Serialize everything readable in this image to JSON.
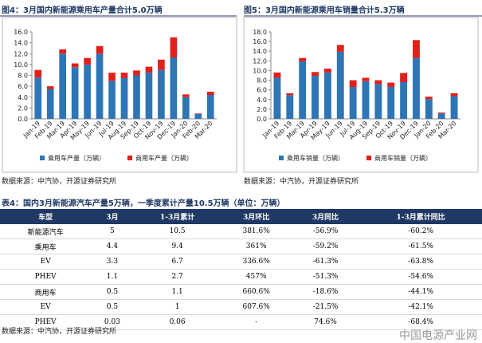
{
  "chart_data": [
    {
      "type": "bar",
      "stacked": true,
      "title": "图4：3月国内新能源乘用车产量合计5.0万辆",
      "categories": [
        "Jan-19",
        "Feb-19",
        "Mar-19",
        "Apr-19",
        "May-19",
        "Jun-19",
        "Jul-19",
        "Aug-19",
        "Sep-19",
        "Oct-19",
        "Nov-19",
        "Dec-19",
        "Jan-20",
        "Feb-20",
        "Mar-20"
      ],
      "series": [
        {
          "name": "乘用车产量（万辆）",
          "color": "#2e75b6",
          "values": [
            7.6,
            5.5,
            12.0,
            9.5,
            10.0,
            12.0,
            7.0,
            7.5,
            8.0,
            8.5,
            9.0,
            11.3,
            4.0,
            0.9,
            4.4
          ]
        },
        {
          "name": "商用车产量（万辆）",
          "color": "#e0201b",
          "values": [
            1.4,
            0.5,
            0.8,
            0.7,
            1.2,
            1.4,
            1.5,
            1.0,
            0.9,
            1.1,
            1.9,
            3.7,
            0.5,
            0.1,
            0.6
          ]
        }
      ],
      "ylim": [
        0,
        16
      ],
      "yticks": [
        {
          "value": 0,
          "label": "0.0"
        },
        {
          "value": 2,
          "label": "2.0"
        },
        {
          "value": 4,
          "label": "4.0"
        },
        {
          "value": 6,
          "label": "6.0"
        },
        {
          "value": 8,
          "label": "8.0"
        },
        {
          "value": 10,
          "label": "10.0"
        },
        {
          "value": 12,
          "label": "12.0"
        },
        {
          "value": 14,
          "label": "14.0"
        },
        {
          "value": 16,
          "label": "16.0"
        }
      ],
      "source": "数据来源：中汽协，开源证券研究所"
    },
    {
      "type": "bar",
      "stacked": true,
      "title": "图5：3月国内新能源乘用车销量合计5.3万辆",
      "categories": [
        "Jan-19",
        "Feb-19",
        "Mar-19",
        "Apr-19",
        "May-19",
        "Jun-19",
        "Jul-19",
        "Aug-19",
        "Sep-19",
        "Oct-19",
        "Nov-19",
        "Dec-19",
        "Jan-20",
        "Feb-20",
        "Mar-20"
      ],
      "series": [
        {
          "name": "乘用车销量（万辆）",
          "color": "#2e75b6",
          "values": [
            8.5,
            4.9,
            11.9,
            8.9,
            9.6,
            13.9,
            6.6,
            7.8,
            7.2,
            6.6,
            7.6,
            12.6,
            4.1,
            1.1,
            4.7
          ]
        },
        {
          "name": "商用车销量（万辆）",
          "color": "#e0201b",
          "values": [
            1.1,
            0.4,
            0.7,
            0.8,
            0.8,
            1.4,
            1.4,
            0.7,
            0.8,
            0.9,
            1.9,
            3.7,
            0.5,
            0.2,
            0.6
          ]
        }
      ],
      "ylim": [
        0,
        18
      ],
      "yticks": [
        {
          "value": 0,
          "label": "0.0"
        },
        {
          "value": 2,
          "label": "2.0"
        },
        {
          "value": 4,
          "label": "4.0"
        },
        {
          "value": 6,
          "label": "6.0"
        },
        {
          "value": 8,
          "label": "8.0"
        },
        {
          "value": 10,
          "label": "10.0"
        },
        {
          "value": 12,
          "label": "12.0"
        },
        {
          "value": 14,
          "label": "14.0"
        },
        {
          "value": 16,
          "label": "16.0"
        },
        {
          "value": 18,
          "label": "18.0"
        }
      ],
      "source": "数据来源：中汽协，开源证券研究所"
    }
  ],
  "table": {
    "title": "表4：国内3月新能源汽车产量5万辆，一季度累计产量10.5万辆（单位：万辆）",
    "header": [
      "车型",
      "3月",
      "1-3月累计",
      "3月环比",
      "3月同比",
      "1-3月累计同比"
    ],
    "rows": [
      [
        "新能源汽车",
        "5",
        "10.5",
        "381.6%",
        "-56.9%",
        "-60.2%"
      ],
      [
        "乘用车",
        "4.4",
        "9.4",
        "361%",
        "-59.2%",
        "-61.5%"
      ],
      [
        "EV",
        "3.3",
        "6.7",
        "336.6%",
        "-61.3%",
        "-63.8%"
      ],
      [
        "PHEV",
        "1.1",
        "2.7",
        "457%",
        "-51.3%",
        "-54.6%"
      ],
      [
        "商用车",
        "0.5",
        "1.1",
        "660.6%",
        "-18.6%",
        "-44.1%"
      ],
      [
        "EV",
        "0.5",
        "1",
        "607.6%",
        "-21.5%",
        "-42.1%"
      ],
      [
        "PHEV",
        "0.03",
        "0.06",
        "-",
        "74.6%",
        "-68.4%"
      ]
    ],
    "source": "数据来源：中汽协，开源证券研究所"
  },
  "watermark": "中国电源产业网"
}
